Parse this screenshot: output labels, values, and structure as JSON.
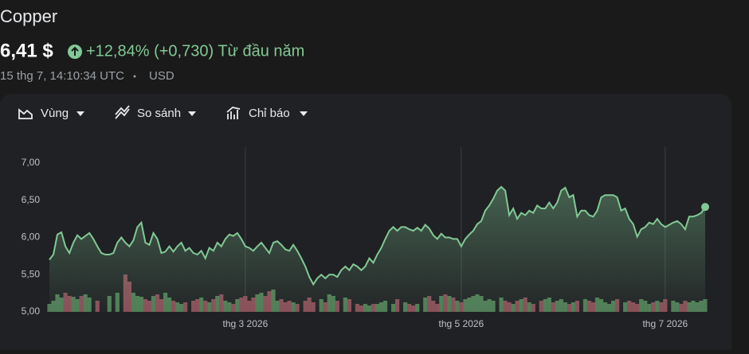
{
  "header": {
    "title": "Copper",
    "price": "6,41 $",
    "change": "+12,84% (+0,730) Từ đầu năm",
    "timestamp": "15 thg 7, 14:10:34 UTC",
    "currency": "USD"
  },
  "toolbar": [
    "Vùng",
    "So sánh",
    "Chỉ báo"
  ],
  "chart_data": {
    "type": "line",
    "color": "#81c995",
    "up_color": "#4f7c55",
    "down_color": "#8a4d58",
    "categories": [
      null,
      null,
      null,
      null,
      null,
      null,
      null,
      null,
      null,
      null,
      null,
      null,
      null,
      null,
      null,
      null,
      null,
      null,
      null,
      null,
      null,
      null,
      null,
      null,
      null,
      null,
      null,
      null,
      null,
      null,
      null,
      null,
      null,
      null,
      null,
      null,
      null,
      null,
      null,
      null,
      null,
      null,
      null,
      null,
      null,
      null,
      null,
      null,
      null,
      "thg 3 2026",
      null,
      null,
      null,
      null,
      null,
      null,
      null,
      null,
      null,
      null,
      null,
      null,
      null,
      null,
      null,
      null,
      null,
      null,
      null,
      null,
      null,
      null,
      null,
      null,
      null,
      null,
      null,
      null,
      null,
      null,
      null,
      null,
      null,
      null,
      null,
      null,
      null,
      null,
      null,
      null,
      null,
      null,
      null,
      null,
      null,
      null,
      null,
      null,
      null,
      null,
      null,
      null,
      null,
      "thg 5 2026",
      null,
      null,
      null,
      null,
      null,
      null,
      null,
      null,
      null,
      null,
      null,
      null,
      null,
      null,
      null,
      null,
      null,
      null,
      null,
      null,
      null,
      null,
      null,
      null,
      null,
      null,
      null,
      null,
      null,
      null,
      null,
      null,
      null,
      null,
      null,
      null,
      null,
      null,
      null,
      null,
      null,
      null,
      null,
      null,
      null,
      null,
      null,
      null,
      null,
      null,
      "thg 7 2026",
      null,
      null,
      null,
      null,
      null,
      null,
      null,
      null,
      null,
      null
    ],
    "values": [
      5.7,
      5.77,
      6.04,
      6.07,
      5.88,
      5.79,
      5.93,
      6.03,
      5.98,
      6.02,
      6.06,
      5.98,
      5.88,
      5.79,
      5.77,
      5.77,
      5.79,
      5.93,
      6.0,
      5.93,
      5.88,
      5.96,
      6.14,
      6.2,
      5.93,
      5.9,
      6.06,
      5.98,
      5.79,
      5.81,
      5.88,
      5.81,
      5.88,
      5.93,
      5.82,
      5.86,
      5.79,
      5.77,
      5.82,
      5.72,
      5.86,
      5.82,
      5.93,
      5.88,
      5.98,
      6.04,
      6.02,
      6.06,
      5.98,
      5.88,
      5.86,
      5.82,
      5.88,
      5.93,
      5.86,
      5.79,
      5.93,
      5.95,
      5.9,
      5.84,
      5.82,
      5.9,
      5.82,
      5.72,
      5.61,
      5.47,
      5.37,
      5.45,
      5.5,
      5.45,
      5.5,
      5.5,
      5.47,
      5.56,
      5.61,
      5.56,
      5.64,
      5.61,
      5.56,
      5.61,
      5.72,
      5.66,
      5.77,
      5.86,
      5.98,
      6.09,
      6.14,
      6.09,
      6.14,
      6.14,
      6.11,
      6.09,
      6.13,
      6.09,
      6.17,
      6.12,
      6.03,
      5.98,
      6.05,
      6.0,
      6.0,
      5.98,
      5.98,
      5.88,
      5.98,
      6.04,
      6.09,
      6.18,
      6.22,
      6.36,
      6.43,
      6.52,
      6.63,
      6.68,
      6.63,
      6.3,
      6.39,
      6.25,
      6.33,
      6.3,
      6.36,
      6.33,
      6.43,
      6.39,
      6.39,
      6.47,
      6.39,
      6.47,
      6.63,
      6.67,
      6.54,
      6.57,
      6.28,
      6.36,
      6.36,
      6.3,
      6.28,
      6.36,
      6.54,
      6.57,
      6.57,
      6.57,
      6.54,
      6.36,
      6.39,
      6.25,
      6.18,
      6.01,
      6.11,
      6.14,
      6.2,
      6.18,
      6.25,
      6.18,
      6.14,
      6.17,
      6.2,
      6.22,
      6.18,
      6.11,
      6.28,
      6.28,
      6.3,
      6.33,
      6.41
    ],
    "volume": [
      10,
      14,
      22,
      18,
      24,
      20,
      19,
      16,
      20,
      22,
      18,
      null,
      14,
      null,
      null,
      20,
      null,
      24,
      null,
      47,
      38,
      24,
      20,
      19,
      16,
      14,
      20,
      22,
      16,
      24,
      18,
      14,
      12,
      10,
      12,
      null,
      14,
      16,
      18,
      14,
      12,
      16,
      20,
      22,
      14,
      12,
      10,
      16,
      18,
      20,
      14,
      18,
      22,
      24,
      20,
      26,
      28,
      14,
      16,
      12,
      14,
      12,
      10,
      null,
      14,
      18,
      12,
      null,
      16,
      12,
      22,
      20,
      14,
      null,
      18,
      16,
      null,
      10,
      8,
      10,
      8,
      10,
      10,
      12,
      14,
      null,
      10,
      16,
      null,
      12,
      10,
      8,
      10,
      null,
      18,
      20,
      14,
      10,
      20,
      22,
      20,
      18,
      14,
      12,
      16,
      18,
      20,
      22,
      20,
      14,
      16,
      14,
      null,
      18,
      14,
      12,
      10,
      14,
      16,
      18,
      12,
      10,
      null,
      14,
      16,
      18,
      12,
      14,
      16,
      12,
      10,
      12,
      14,
      null,
      16,
      14,
      12,
      18,
      16,
      12,
      10,
      14,
      16,
      null,
      12,
      14,
      12,
      10,
      16,
      14,
      10,
      12,
      14,
      12,
      16,
      null,
      14,
      12,
      10,
      14,
      12,
      14,
      12,
      14,
      16
    ],
    "ylim": [
      5,
      7
    ],
    "yticks": [
      {
        "value": 5,
        "label": "5,00"
      },
      {
        "value": 5.5,
        "label": "5,50"
      },
      {
        "value": 6,
        "label": "6,00"
      },
      {
        "value": 6.5,
        "label": "6,50"
      },
      {
        "value": 7,
        "label": "7,00"
      }
    ]
  }
}
